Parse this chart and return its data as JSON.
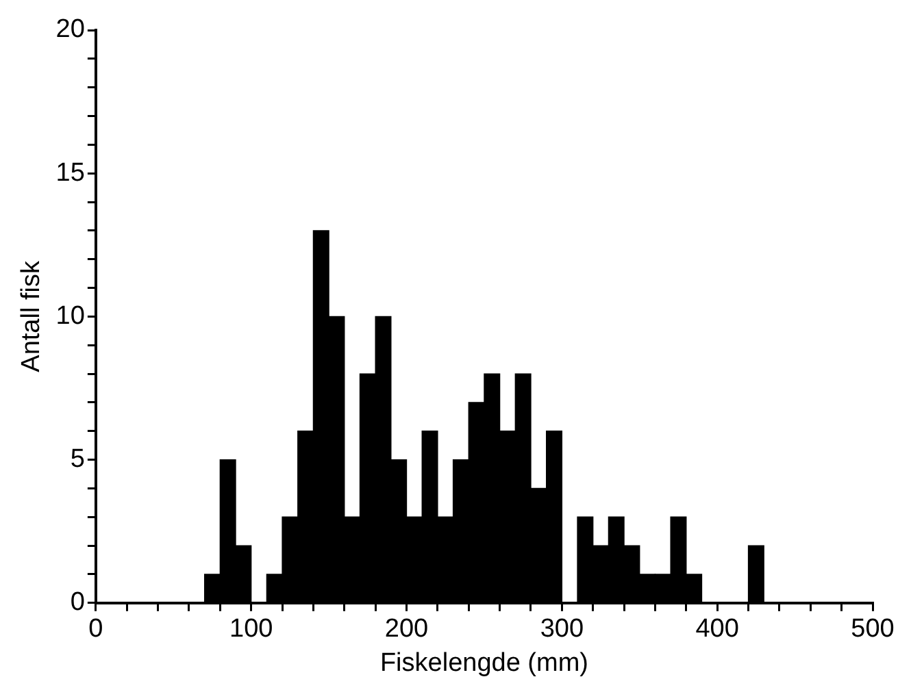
{
  "chart_data": {
    "type": "histogram",
    "xlabel": "Fiskelengde (mm)",
    "ylabel": "Antall fisk",
    "bins": [
      70,
      80,
      90,
      100,
      110,
      120,
      130,
      140,
      150,
      160,
      170,
      180,
      190,
      200,
      210,
      220,
      230,
      240,
      250,
      260,
      270,
      280,
      290,
      300,
      310,
      320,
      330,
      340,
      350,
      360,
      370,
      380,
      390,
      400,
      410,
      420,
      430
    ],
    "values": [
      1,
      5,
      2,
      0,
      1,
      3,
      6,
      13,
      10,
      3,
      8,
      10,
      5,
      3,
      6,
      3,
      5,
      7,
      8,
      6,
      8,
      4,
      6,
      0,
      3,
      2,
      3,
      2,
      1,
      1,
      3,
      1,
      0,
      0,
      0,
      2
    ],
    "color": "#000000",
    "xlim": [
      0,
      500
    ],
    "xticks": [
      0,
      {
        "value": 20,
        "label": null
      },
      {
        "value": 40,
        "label": null
      },
      {
        "value": 60,
        "label": null
      },
      {
        "value": 80,
        "label": null
      },
      100,
      {
        "value": 120,
        "label": null
      },
      {
        "value": 140,
        "label": null
      },
      {
        "value": 160,
        "label": null
      },
      {
        "value": 180,
        "label": null
      },
      200,
      {
        "value": 220,
        "label": null
      },
      {
        "value": 240,
        "label": null
      },
      {
        "value": 260,
        "label": null
      },
      {
        "value": 280,
        "label": null
      },
      300,
      {
        "value": 320,
        "label": null
      },
      {
        "value": 340,
        "label": null
      },
      {
        "value": 360,
        "label": null
      },
      {
        "value": 380,
        "label": null
      },
      400,
      {
        "value": 420,
        "label": null
      },
      {
        "value": 440,
        "label": null
      },
      {
        "value": 460,
        "label": null
      },
      {
        "value": 480,
        "label": null
      },
      500
    ],
    "ylim": [
      0,
      20
    ],
    "yticks": [
      0,
      {
        "value": 1,
        "label": null
      },
      {
        "value": 2,
        "label": null
      },
      {
        "value": 3,
        "label": null
      },
      {
        "value": 4,
        "label": null
      },
      5,
      {
        "value": 6,
        "label": null
      },
      {
        "value": 7,
        "label": null
      },
      {
        "value": 8,
        "label": null
      },
      {
        "value": 9,
        "label": null
      },
      10,
      {
        "value": 11,
        "label": null
      },
      {
        "value": 12,
        "label": null
      },
      {
        "value": 13,
        "label": null
      },
      {
        "value": 14,
        "label": null
      },
      15,
      {
        "value": 16,
        "label": null
      },
      {
        "value": 17,
        "label": null
      },
      {
        "value": 18,
        "label": null
      },
      {
        "value": 19,
        "label": null
      },
      20
    ],
    "grid": false,
    "legend": false
  }
}
